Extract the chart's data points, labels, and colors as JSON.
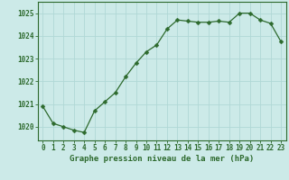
{
  "x": [
    0,
    1,
    2,
    3,
    4,
    5,
    6,
    7,
    8,
    9,
    10,
    11,
    12,
    13,
    14,
    15,
    16,
    17,
    18,
    19,
    20,
    21,
    22,
    23
  ],
  "y": [
    1020.9,
    1020.15,
    1020.0,
    1019.85,
    1019.75,
    1020.7,
    1021.1,
    1021.5,
    1022.2,
    1022.8,
    1023.3,
    1023.6,
    1024.3,
    1024.7,
    1024.65,
    1024.6,
    1024.6,
    1024.65,
    1024.6,
    1025.0,
    1025.0,
    1024.7,
    1024.55,
    1023.75
  ],
  "line_color": "#2d6a2d",
  "marker_color": "#2d6a2d",
  "bg_color": "#cceae8",
  "grid_color": "#b0d8d5",
  "ylabel_ticks": [
    1020,
    1021,
    1022,
    1023,
    1024,
    1025
  ],
  "xlabel_label": "Graphe pression niveau de la mer (hPa)",
  "ylim": [
    1019.4,
    1025.5
  ],
  "xlim": [
    -0.5,
    23.5
  ],
  "tick_fontsize": 5.5,
  "label_fontsize": 6.5,
  "marker_size": 2.5,
  "line_width": 0.9
}
